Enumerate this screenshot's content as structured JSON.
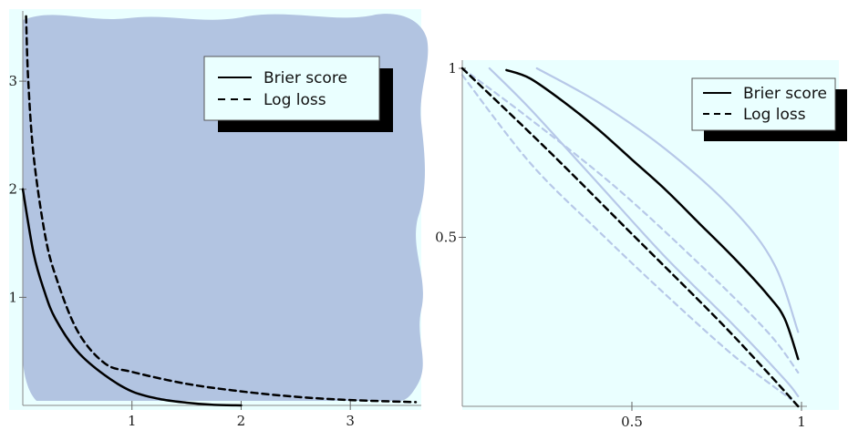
{
  "colors": {
    "panel_bg": "#eaffff",
    "blob_fill": "#b2c4e1",
    "curve": "#000000",
    "faint_curve": "#b7c8e8",
    "legend_shadow": "#000000"
  },
  "chart_data": [
    {
      "type": "line",
      "title": "",
      "xlabel": "",
      "ylabel": "",
      "xlim": [
        0,
        3.65
      ],
      "ylim": [
        0,
        3.65
      ],
      "xticks": [
        "1",
        "2",
        "3"
      ],
      "yticks": [
        "1",
        "2",
        "3"
      ],
      "grid": false,
      "legend_position": "top-right",
      "series": [
        {
          "name": "Brier score",
          "style": "solid",
          "x": [
            0,
            0.1,
            0.2,
            0.3,
            0.5,
            0.75,
            1.0,
            1.25,
            1.5,
            1.75,
            2.0
          ],
          "y": [
            2.0,
            1.4,
            1.05,
            0.8,
            0.5,
            0.28,
            0.13,
            0.06,
            0.025,
            0.005,
            0.0
          ]
        },
        {
          "name": "Log loss",
          "style": "dashed",
          "x": [
            0.03,
            0.05,
            0.1,
            0.2,
            0.3,
            0.5,
            0.75,
            1.0,
            1.5,
            2.0,
            2.5,
            3.0,
            3.6
          ],
          "y": [
            3.6,
            3.0,
            2.3,
            1.6,
            1.2,
            0.69,
            0.39,
            0.31,
            0.2,
            0.13,
            0.08,
            0.05,
            0.03
          ]
        }
      ]
    },
    {
      "type": "line",
      "title": "",
      "xlabel": "",
      "ylabel": "",
      "xlim": [
        0,
        1
      ],
      "ylim": [
        0,
        1
      ],
      "xticks": [
        "0.5",
        "1"
      ],
      "yticks": [
        "0.5",
        "1"
      ],
      "grid": false,
      "legend_position": "top-right",
      "series": [
        {
          "name": "Brier score",
          "style": "solid",
          "x": [
            0.13,
            0.2,
            0.3,
            0.4,
            0.5,
            0.6,
            0.7,
            0.8,
            0.9,
            0.95,
            0.99
          ],
          "y": [
            0.995,
            0.97,
            0.9,
            0.82,
            0.73,
            0.64,
            0.54,
            0.44,
            0.33,
            0.26,
            0.14
          ]
        },
        {
          "name": "Log loss",
          "style": "dashed",
          "x": [
            0,
            0.25,
            0.5,
            0.75,
            0.9,
            0.99
          ],
          "y": [
            1.0,
            0.76,
            0.51,
            0.26,
            0.1,
            0.0
          ]
        }
      ]
    }
  ],
  "legends": [
    {
      "items": [
        "Brier score",
        "Log loss"
      ]
    },
    {
      "items": [
        "Brier score",
        "Log loss"
      ]
    }
  ]
}
